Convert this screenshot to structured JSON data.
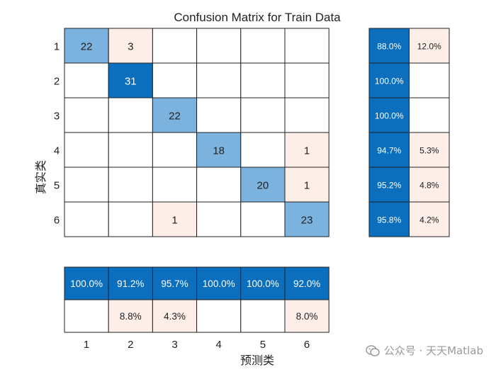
{
  "chart_data": {
    "type": "heatmap",
    "title": "Confusion Matrix for Train Data",
    "xlabel": "预测类",
    "ylabel": "真实类",
    "classes": [
      "1",
      "2",
      "3",
      "4",
      "5",
      "6"
    ],
    "matrix": [
      [
        22,
        3,
        null,
        null,
        null,
        null
      ],
      [
        null,
        31,
        null,
        null,
        null,
        null
      ],
      [
        null,
        null,
        22,
        null,
        null,
        null
      ],
      [
        null,
        null,
        null,
        18,
        null,
        1
      ],
      [
        null,
        null,
        null,
        null,
        20,
        1
      ],
      [
        null,
        null,
        1,
        null,
        null,
        23
      ]
    ],
    "row_summary": [
      [
        "88.0%",
        "12.0%"
      ],
      [
        "100.0%",
        ""
      ],
      [
        "100.0%",
        ""
      ],
      [
        "94.7%",
        "5.3%"
      ],
      [
        "95.2%",
        "4.8%"
      ],
      [
        "95.8%",
        "4.2%"
      ]
    ],
    "column_summary": {
      "correct": [
        "100.0%",
        "91.2%",
        "95.7%",
        "100.0%",
        "100.0%",
        "92.0%"
      ],
      "incorrect": [
        "",
        "8.8%",
        "4.3%",
        "",
        "",
        "8.0%"
      ]
    }
  },
  "watermark": {
    "text": "公众号 · 天天Matlab",
    "icon": "wechat-icon"
  },
  "colors": {
    "diag_dark": "#0b6fbe",
    "diag_light": "#7bb2de",
    "offdiag_light": "#fdeee7",
    "grid": "#222222"
  }
}
